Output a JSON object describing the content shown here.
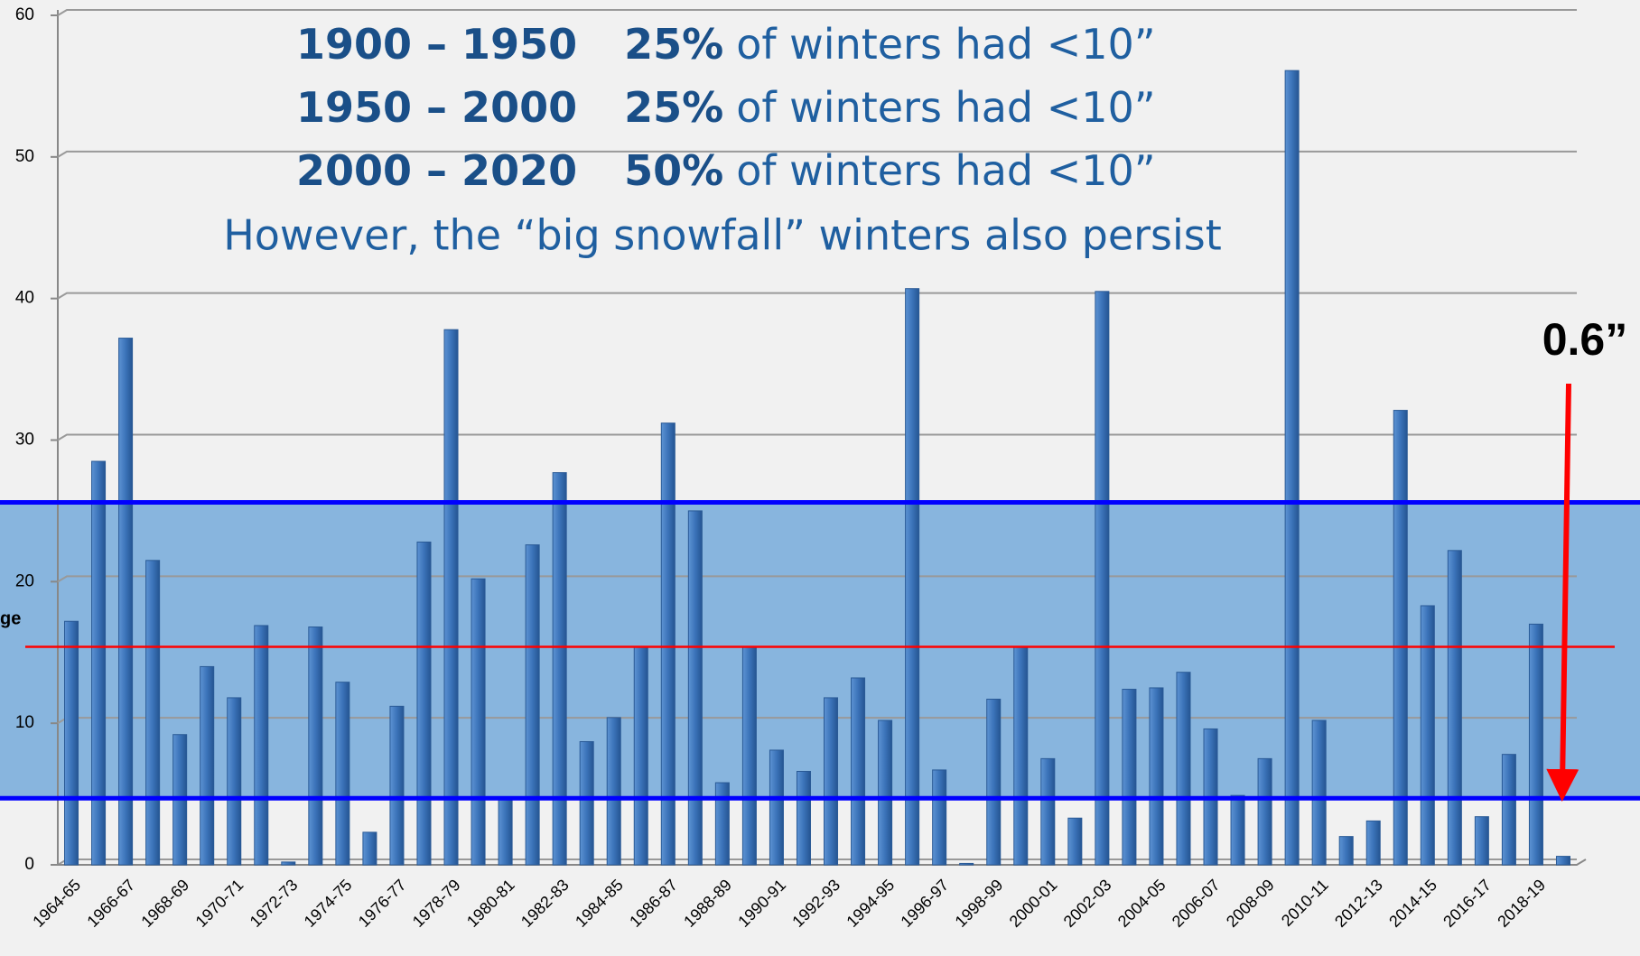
{
  "chart_data": {
    "type": "bar",
    "categories": [
      "1964-65",
      null,
      "1966-67",
      null,
      "1968-69",
      null,
      "1970-71",
      null,
      "1972-73",
      null,
      "1974-75",
      null,
      "1976-77",
      null,
      "1978-79",
      null,
      "1980-81",
      null,
      "1982-83",
      null,
      "1984-85",
      null,
      "1986-87",
      null,
      "1988-89",
      null,
      "1990-91",
      null,
      "1992-93",
      null,
      "1994-95",
      null,
      "1996-97",
      null,
      "1998-99",
      null,
      "2000-01",
      null,
      "2002-03",
      null,
      "2004-05",
      null,
      "2006-07",
      null,
      "2008-09",
      null,
      "2010-11",
      null,
      "2012-13",
      null,
      "2014-15",
      null,
      "2016-17",
      null,
      "2018-19",
      null
    ],
    "values": [
      17.2,
      28.5,
      37.2,
      21.5,
      9.2,
      14.0,
      11.8,
      16.9,
      0.2,
      16.8,
      12.9,
      2.3,
      11.2,
      22.8,
      37.8,
      20.2,
      4.8,
      22.6,
      27.7,
      8.7,
      10.4,
      15.4,
      31.2,
      25.0,
      5.8,
      15.4,
      8.1,
      6.6,
      11.8,
      13.2,
      10.2,
      40.7,
      6.7,
      0.1,
      11.7,
      15.4,
      7.5,
      3.3,
      40.5,
      12.4,
      12.5,
      13.6,
      9.6,
      4.9,
      7.5,
      56.1,
      10.2,
      2.0,
      3.1,
      32.1,
      18.3,
      22.2,
      3.4,
      7.8,
      17.0,
      0.6
    ],
    "color": "#3b73b9",
    "ylim": [
      0,
      60
    ],
    "yticks": [
      0,
      10,
      20,
      30,
      40,
      50,
      60
    ],
    "grid": true,
    "band": [
      4.7,
      25.6
    ],
    "band_color": "#5b9bd5",
    "average": 15.4,
    "average_color": "#ff0000",
    "ylabel": "ge",
    "annotations": [
      {
        "period": "1900 – 1950",
        "pct": "25%",
        "text": "of winters had <10”"
      },
      {
        "period": "1950 – 2000",
        "pct": "25%",
        "text": "of winters had <10”"
      },
      {
        "period": "2000 – 2020",
        "pct": "50%",
        "text": "of winters had <10”"
      }
    ],
    "note": "However, the “big snowfall” winters also persist",
    "callout": "0.6”"
  }
}
